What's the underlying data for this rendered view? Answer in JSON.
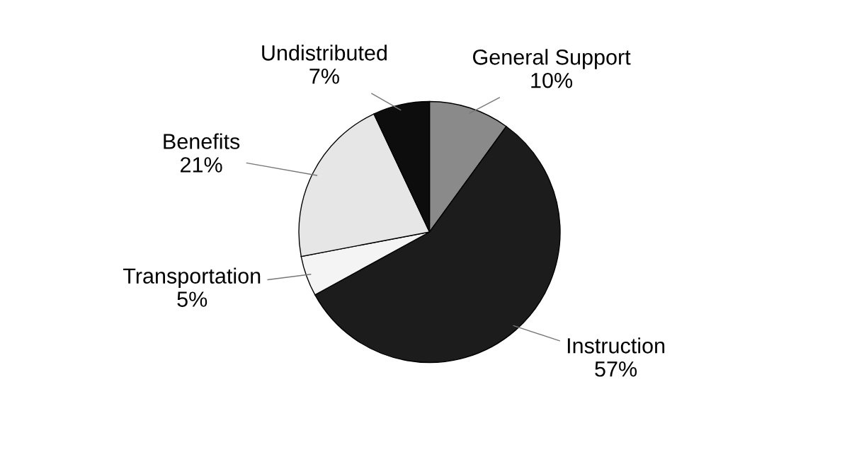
{
  "chart_data": {
    "type": "pie",
    "categories": [
      "General Support",
      "Instruction",
      "Transportation",
      "Benefits",
      "Undistributed"
    ],
    "values": [
      10,
      57,
      5,
      21,
      7
    ],
    "value_labels": [
      "10%",
      "57%",
      "5%",
      "21%",
      "7%"
    ],
    "colors": [
      "#8a8a8a",
      "#1c1c1c",
      "#f4f4f4",
      "#e6e6e6",
      "#0d0d0d"
    ],
    "legend": false
  }
}
